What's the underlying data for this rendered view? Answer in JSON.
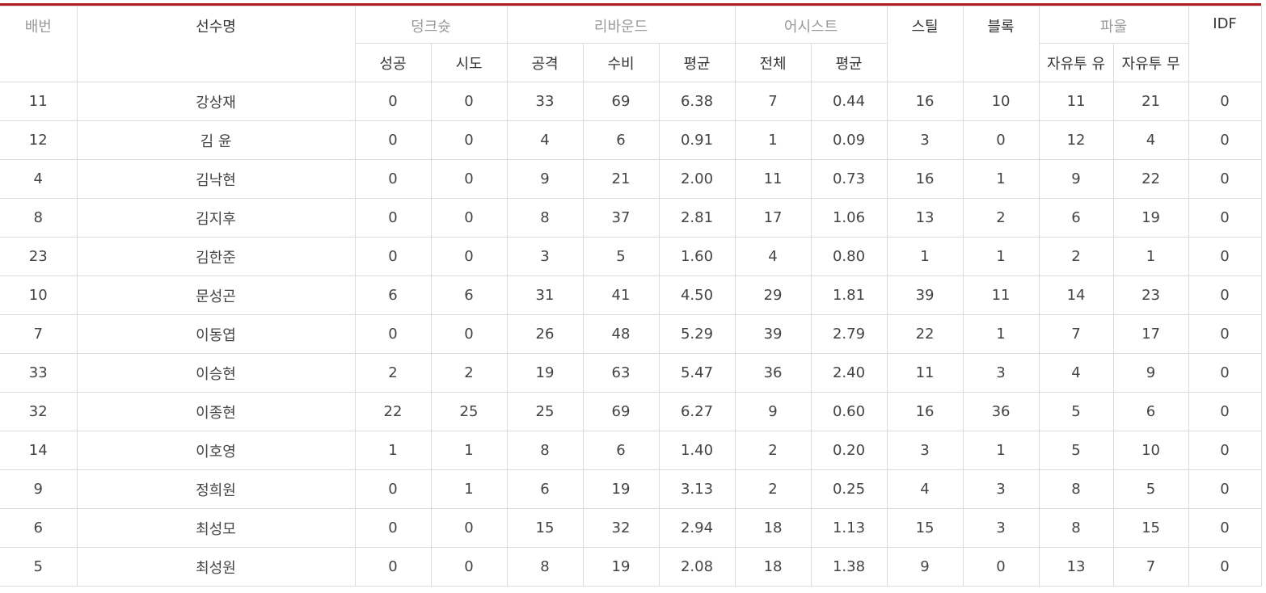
{
  "colors": {
    "accent_bar": "#b01e23",
    "border": "#dcdcdc",
    "muted_header_text": "#999999",
    "text": "#444444"
  },
  "headers": {
    "number": "배번",
    "name": "선수명",
    "dunk": "덩크슛",
    "rebound": "리바운드",
    "assist": "어시스트",
    "steal": "스틸",
    "block": "블록",
    "foul": "파울",
    "idf": "IDF",
    "dunk_made": "성공",
    "dunk_attempt": "시도",
    "rebound_off": "공격",
    "rebound_def": "수비",
    "rebound_avg": "평균",
    "assist_total": "전체",
    "assist_avg": "평균",
    "foul_ft_yes": "자유투 유",
    "foul_ft_no": "자유투 무"
  },
  "rows": [
    {
      "number": "11",
      "name": "강상재",
      "dunk_made": "0",
      "dunk_attempt": "0",
      "reb_off": "33",
      "reb_def": "69",
      "reb_avg": "6.38",
      "ast_total": "7",
      "ast_avg": "0.44",
      "steal": "16",
      "block": "10",
      "foul_ft_yes": "11",
      "foul_ft_no": "21",
      "idf": "0"
    },
    {
      "number": "12",
      "name": "김 윤",
      "dunk_made": "0",
      "dunk_attempt": "0",
      "reb_off": "4",
      "reb_def": "6",
      "reb_avg": "0.91",
      "ast_total": "1",
      "ast_avg": "0.09",
      "steal": "3",
      "block": "0",
      "foul_ft_yes": "12",
      "foul_ft_no": "4",
      "idf": "0"
    },
    {
      "number": "4",
      "name": "김낙현",
      "dunk_made": "0",
      "dunk_attempt": "0",
      "reb_off": "9",
      "reb_def": "21",
      "reb_avg": "2.00",
      "ast_total": "11",
      "ast_avg": "0.73",
      "steal": "16",
      "block": "1",
      "foul_ft_yes": "9",
      "foul_ft_no": "22",
      "idf": "0"
    },
    {
      "number": "8",
      "name": "김지후",
      "dunk_made": "0",
      "dunk_attempt": "0",
      "reb_off": "8",
      "reb_def": "37",
      "reb_avg": "2.81",
      "ast_total": "17",
      "ast_avg": "1.06",
      "steal": "13",
      "block": "2",
      "foul_ft_yes": "6",
      "foul_ft_no": "19",
      "idf": "0"
    },
    {
      "number": "23",
      "name": "김한준",
      "dunk_made": "0",
      "dunk_attempt": "0",
      "reb_off": "3",
      "reb_def": "5",
      "reb_avg": "1.60",
      "ast_total": "4",
      "ast_avg": "0.80",
      "steal": "1",
      "block": "1",
      "foul_ft_yes": "2",
      "foul_ft_no": "1",
      "idf": "0"
    },
    {
      "number": "10",
      "name": "문성곤",
      "dunk_made": "6",
      "dunk_attempt": "6",
      "reb_off": "31",
      "reb_def": "41",
      "reb_avg": "4.50",
      "ast_total": "29",
      "ast_avg": "1.81",
      "steal": "39",
      "block": "11",
      "foul_ft_yes": "14",
      "foul_ft_no": "23",
      "idf": "0"
    },
    {
      "number": "7",
      "name": "이동엽",
      "dunk_made": "0",
      "dunk_attempt": "0",
      "reb_off": "26",
      "reb_def": "48",
      "reb_avg": "5.29",
      "ast_total": "39",
      "ast_avg": "2.79",
      "steal": "22",
      "block": "1",
      "foul_ft_yes": "7",
      "foul_ft_no": "17",
      "idf": "0"
    },
    {
      "number": "33",
      "name": "이승현",
      "dunk_made": "2",
      "dunk_attempt": "2",
      "reb_off": "19",
      "reb_def": "63",
      "reb_avg": "5.47",
      "ast_total": "36",
      "ast_avg": "2.40",
      "steal": "11",
      "block": "3",
      "foul_ft_yes": "4",
      "foul_ft_no": "9",
      "idf": "0"
    },
    {
      "number": "32",
      "name": "이종현",
      "dunk_made": "22",
      "dunk_attempt": "25",
      "reb_off": "25",
      "reb_def": "69",
      "reb_avg": "6.27",
      "ast_total": "9",
      "ast_avg": "0.60",
      "steal": "16",
      "block": "36",
      "foul_ft_yes": "5",
      "foul_ft_no": "6",
      "idf": "0"
    },
    {
      "number": "14",
      "name": "이호영",
      "dunk_made": "1",
      "dunk_attempt": "1",
      "reb_off": "8",
      "reb_def": "6",
      "reb_avg": "1.40",
      "ast_total": "2",
      "ast_avg": "0.20",
      "steal": "3",
      "block": "1",
      "foul_ft_yes": "5",
      "foul_ft_no": "10",
      "idf": "0"
    },
    {
      "number": "9",
      "name": "정희원",
      "dunk_made": "0",
      "dunk_attempt": "1",
      "reb_off": "6",
      "reb_def": "19",
      "reb_avg": "3.13",
      "ast_total": "2",
      "ast_avg": "0.25",
      "steal": "4",
      "block": "3",
      "foul_ft_yes": "8",
      "foul_ft_no": "5",
      "idf": "0"
    },
    {
      "number": "6",
      "name": "최성모",
      "dunk_made": "0",
      "dunk_attempt": "0",
      "reb_off": "15",
      "reb_def": "32",
      "reb_avg": "2.94",
      "ast_total": "18",
      "ast_avg": "1.13",
      "steal": "15",
      "block": "3",
      "foul_ft_yes": "8",
      "foul_ft_no": "15",
      "idf": "0"
    },
    {
      "number": "5",
      "name": "최성원",
      "dunk_made": "0",
      "dunk_attempt": "0",
      "reb_off": "8",
      "reb_def": "19",
      "reb_avg": "2.08",
      "ast_total": "18",
      "ast_avg": "1.38",
      "steal": "9",
      "block": "0",
      "foul_ft_yes": "13",
      "foul_ft_no": "7",
      "idf": "0"
    }
  ]
}
